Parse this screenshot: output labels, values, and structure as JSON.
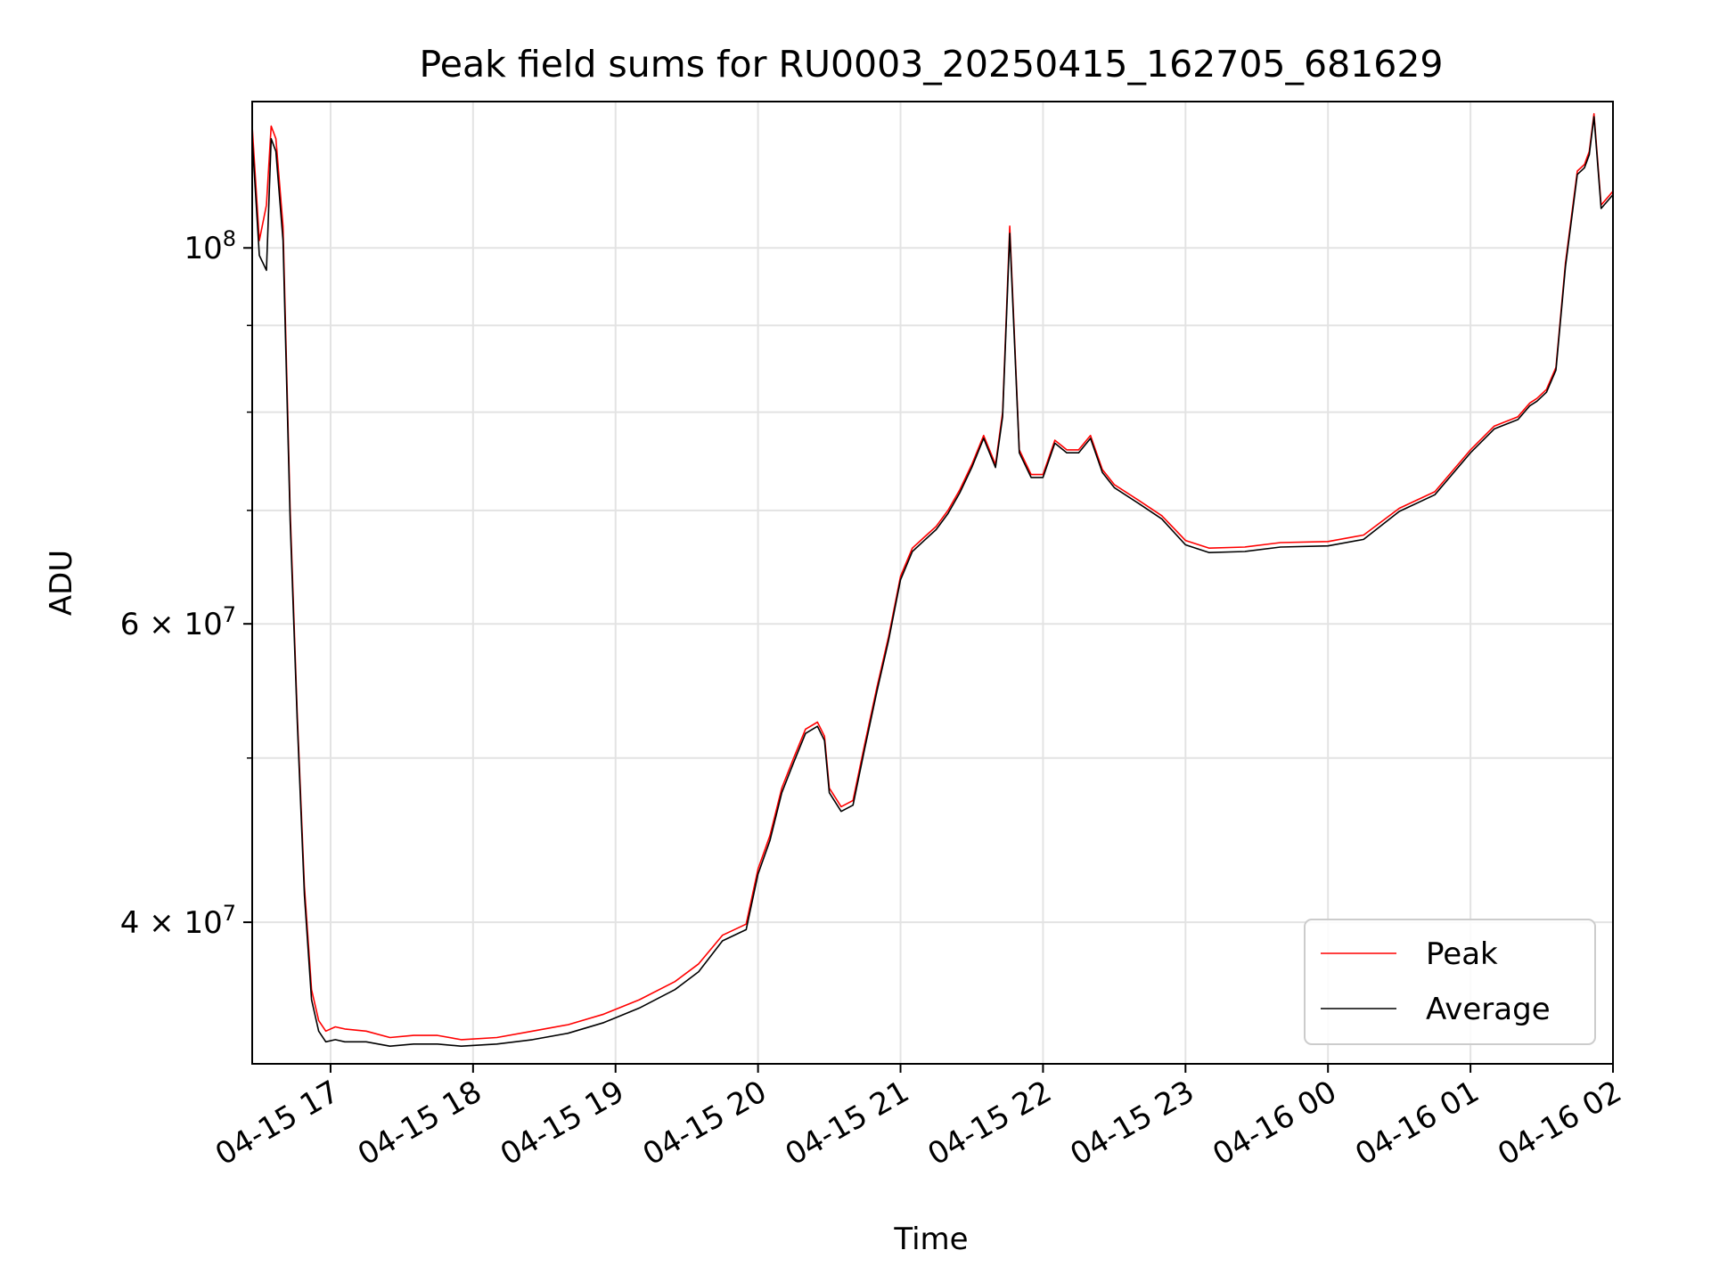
{
  "chart_data": {
    "type": "line",
    "title": "Peak field sums for RU0003_20250415_162705_681629",
    "xlabel": "Time",
    "ylabel": "ADU",
    "yscale": "log",
    "ylim": [
      33000000,
      122000000
    ],
    "xlim": [
      "04-15 16:27",
      "04-16 02:00"
    ],
    "grid": true,
    "legend_position": "lower-right",
    "x_tick_labels": [
      "04-15 17",
      "04-15 18",
      "04-15 19",
      "04-15 20",
      "04-15 21",
      "04-15 22",
      "04-15 23",
      "04-16 00",
      "04-16 01",
      "04-16 02"
    ],
    "y_tick_labels": [
      {
        "value": 100000000,
        "base": "10",
        "exp": "8",
        "mult": ""
      },
      {
        "value": 60000000,
        "base": "10",
        "exp": "7",
        "mult": "6 × "
      },
      {
        "value": 40000000,
        "base": "10",
        "exp": "7",
        "mult": "4 × "
      }
    ],
    "y_minor_ticks": [
      90000000,
      80000000,
      70000000,
      50000000
    ],
    "series": [
      {
        "name": "Peak",
        "color": "#ff0000",
        "x": [
          "04-15 16:27",
          "04-15 16:30",
          "04-15 16:33",
          "04-15 16:35",
          "04-15 16:37",
          "04-15 16:40",
          "04-15 16:43",
          "04-15 16:46",
          "04-15 16:49",
          "04-15 16:52",
          "04-15 16:55",
          "04-15 16:58",
          "04-15 17:02",
          "04-15 17:06",
          "04-15 17:15",
          "04-15 17:25",
          "04-15 17:35",
          "04-15 17:45",
          "04-15 17:55",
          "04-15 18:10",
          "04-15 18:25",
          "04-15 18:40",
          "04-15 18:55",
          "04-15 19:10",
          "04-15 19:25",
          "04-15 19:35",
          "04-15 19:45",
          "04-15 19:55",
          "04-15 20:00",
          "04-15 20:05",
          "04-15 20:10",
          "04-15 20:15",
          "04-15 20:20",
          "04-15 20:25",
          "04-15 20:28",
          "04-15 20:30",
          "04-15 20:35",
          "04-15 20:40",
          "04-15 20:45",
          "04-15 20:50",
          "04-15 20:55",
          "04-15 21:00",
          "04-15 21:05",
          "04-15 21:10",
          "04-15 21:15",
          "04-15 21:20",
          "04-15 21:25",
          "04-15 21:30",
          "04-15 21:35",
          "04-15 21:40",
          "04-15 21:43",
          "04-15 21:46",
          "04-15 21:50",
          "04-15 21:55",
          "04-15 22:00",
          "04-15 22:05",
          "04-15 22:10",
          "04-15 22:15",
          "04-15 22:20",
          "04-15 22:25",
          "04-15 22:30",
          "04-15 22:40",
          "04-15 22:50",
          "04-15 23:00",
          "04-15 23:10",
          "04-15 23:25",
          "04-15 23:40",
          "04-16 00:00",
          "04-16 00:15",
          "04-16 00:30",
          "04-16 00:45",
          "04-16 01:00",
          "04-16 01:10",
          "04-16 01:20",
          "04-16 01:25",
          "04-16 01:28",
          "04-16 01:32",
          "04-16 01:36",
          "04-16 01:40",
          "04-16 01:45",
          "04-16 01:48",
          "04-16 01:50",
          "04-16 01:52",
          "04-16 01:55",
          "04-16 02:00"
        ],
        "y": [
          118000000,
          101000000,
          106000000,
          118000000,
          116000000,
          103000000,
          70000000,
          53000000,
          42000000,
          36500000,
          35000000,
          34500000,
          34700000,
          34600000,
          34500000,
          34200000,
          34300000,
          34300000,
          34100000,
          34200000,
          34500000,
          34800000,
          35300000,
          36000000,
          36900000,
          37800000,
          39300000,
          39900000,
          43000000,
          45000000,
          48000000,
          50000000,
          52000000,
          52500000,
          51500000,
          48000000,
          46800000,
          47200000,
          51000000,
          55000000,
          59000000,
          64000000,
          66500000,
          67500000,
          68500000,
          70000000,
          72000000,
          74500000,
          77500000,
          74500000,
          80000000,
          103000000,
          76000000,
          73500000,
          73500000,
          77000000,
          76000000,
          76000000,
          77500000,
          74000000,
          72500000,
          71000000,
          69500000,
          67200000,
          66500000,
          66600000,
          67000000,
          67100000,
          67700000,
          70200000,
          71800000,
          76000000,
          78500000,
          79500000,
          81000000,
          81500000,
          82500000,
          85000000,
          98000000,
          111000000,
          112000000,
          114000000,
          120000000,
          106000000,
          108000000
        ]
      },
      {
        "name": "Average",
        "color": "#000000",
        "x": [
          "04-15 16:27",
          "04-15 16:30",
          "04-15 16:33",
          "04-15 16:35",
          "04-15 16:37",
          "04-15 16:40",
          "04-15 16:43",
          "04-15 16:46",
          "04-15 16:49",
          "04-15 16:52",
          "04-15 16:55",
          "04-15 16:58",
          "04-15 17:02",
          "04-15 17:06",
          "04-15 17:15",
          "04-15 17:25",
          "04-15 17:35",
          "04-15 17:45",
          "04-15 17:55",
          "04-15 18:10",
          "04-15 18:25",
          "04-15 18:40",
          "04-15 18:55",
          "04-15 19:10",
          "04-15 19:25",
          "04-15 19:35",
          "04-15 19:45",
          "04-15 19:55",
          "04-15 20:00",
          "04-15 20:05",
          "04-15 20:10",
          "04-15 20:15",
          "04-15 20:20",
          "04-15 20:25",
          "04-15 20:28",
          "04-15 20:30",
          "04-15 20:35",
          "04-15 20:40",
          "04-15 20:45",
          "04-15 20:50",
          "04-15 20:55",
          "04-15 21:00",
          "04-15 21:05",
          "04-15 21:10",
          "04-15 21:15",
          "04-15 21:20",
          "04-15 21:25",
          "04-15 21:30",
          "04-15 21:35",
          "04-15 21:40",
          "04-15 21:43",
          "04-15 21:46",
          "04-15 21:50",
          "04-15 21:55",
          "04-15 22:00",
          "04-15 22:05",
          "04-15 22:10",
          "04-15 22:15",
          "04-15 22:20",
          "04-15 22:25",
          "04-15 22:30",
          "04-15 22:40",
          "04-15 22:50",
          "04-15 23:00",
          "04-15 23:10",
          "04-15 23:25",
          "04-15 23:40",
          "04-16 00:00",
          "04-16 00:15",
          "04-16 00:30",
          "04-16 00:45",
          "04-16 01:00",
          "04-16 01:10",
          "04-16 01:20",
          "04-16 01:25",
          "04-16 01:28",
          "04-16 01:32",
          "04-16 01:36",
          "04-16 01:40",
          "04-16 01:45",
          "04-16 01:48",
          "04-16 01:50",
          "04-16 01:52",
          "04-16 01:55",
          "04-16 02:00"
        ],
        "y": [
          116000000,
          99000000,
          97000000,
          116000000,
          114000000,
          101000000,
          69000000,
          52500000,
          41500000,
          36000000,
          34500000,
          34000000,
          34100000,
          34000000,
          34000000,
          33800000,
          33900000,
          33900000,
          33800000,
          33900000,
          34100000,
          34400000,
          34900000,
          35600000,
          36500000,
          37400000,
          39000000,
          39600000,
          42700000,
          44700000,
          47700000,
          49700000,
          51700000,
          52200000,
          51200000,
          47700000,
          46500000,
          46900000,
          50700000,
          54700000,
          58700000,
          63700000,
          66200000,
          67200000,
          68200000,
          69700000,
          71700000,
          74200000,
          77200000,
          74200000,
          79500000,
          102000000,
          75700000,
          73200000,
          73200000,
          76700000,
          75700000,
          75700000,
          77200000,
          73700000,
          72200000,
          70700000,
          69200000,
          66800000,
          66100000,
          66200000,
          66600000,
          66700000,
          67300000,
          69900000,
          71500000,
          75700000,
          78200000,
          79200000,
          80700000,
          81200000,
          82200000,
          84700000,
          97500000,
          110500000,
          111500000,
          113500000,
          119500000,
          105500000,
          107500000
        ]
      }
    ]
  }
}
